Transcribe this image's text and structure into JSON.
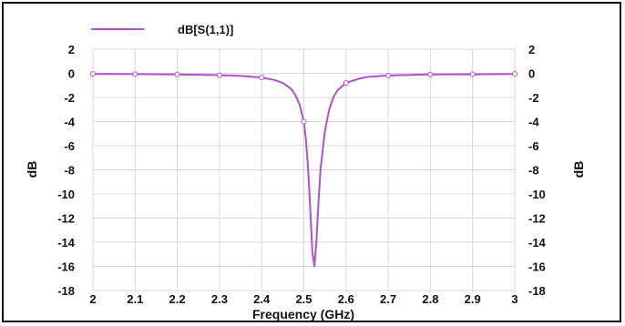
{
  "chart_data": {
    "type": "line",
    "title": "",
    "xlabel": "Frequency (GHz)",
    "ylabel": "dB",
    "y2label": "dB",
    "xlim": [
      2,
      3
    ],
    "ylim": [
      -18,
      2
    ],
    "x_ticks": [
      "2",
      "2.1",
      "2.2",
      "2.3",
      "2.4",
      "2.5",
      "2.6",
      "2.7",
      "2.8",
      "2.9",
      "3"
    ],
    "y_ticks": [
      "2",
      "0",
      "-2",
      "-4",
      "-6",
      "-8",
      "-10",
      "-12",
      "-14",
      "-16",
      "-18"
    ],
    "grid": true,
    "legend_position": "top-left",
    "series": [
      {
        "name": "dB[S(1,1)]",
        "color": "#b050d0",
        "x": [
          2.0,
          2.1,
          2.2,
          2.3,
          2.35,
          2.4,
          2.43,
          2.45,
          2.47,
          2.48,
          2.49,
          2.5,
          2.505,
          2.51,
          2.515,
          2.52,
          2.525,
          2.53,
          2.535,
          2.54,
          2.55,
          2.56,
          2.57,
          2.58,
          2.6,
          2.63,
          2.65,
          2.7,
          2.8,
          2.9,
          3.0
        ],
        "y": [
          -0.05,
          -0.07,
          -0.1,
          -0.15,
          -0.22,
          -0.35,
          -0.55,
          -0.8,
          -1.3,
          -1.8,
          -2.6,
          -4.0,
          -5.5,
          -7.8,
          -11.0,
          -14.8,
          -16.0,
          -13.8,
          -10.5,
          -7.8,
          -4.8,
          -3.0,
          -2.0,
          -1.4,
          -0.8,
          -0.45,
          -0.3,
          -0.18,
          -0.1,
          -0.08,
          -0.05
        ]
      }
    ]
  }
}
